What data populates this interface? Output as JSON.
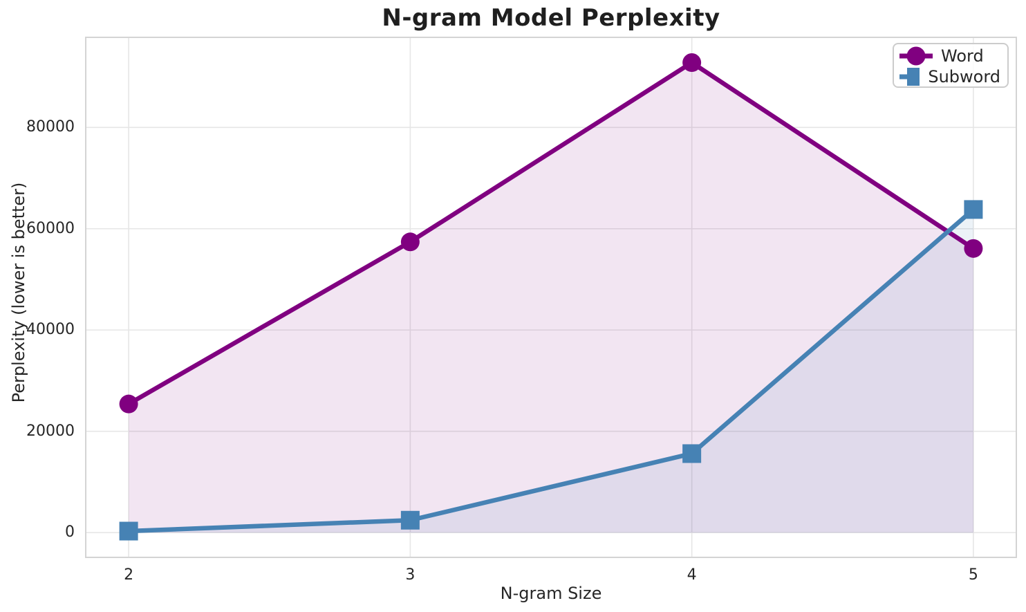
{
  "title": "N-gram Model Perplexity",
  "chart_data": {
    "type": "line",
    "title": "N-gram Model Perplexity",
    "xlabel": "N-gram Size",
    "ylabel": "Perplexity (lower is better)",
    "x": [
      2,
      3,
      4,
      5
    ],
    "series": [
      {
        "name": "Word",
        "values": [
          25400,
          57400,
          92800,
          56100
        ],
        "color": "#800080",
        "marker": "circle"
      },
      {
        "name": "Subword",
        "values": [
          300,
          2450,
          15600,
          63800
        ],
        "color": "#4682B4",
        "marker": "square"
      }
    ],
    "fill_under_lines": true,
    "fill_baseline": 0,
    "fill_opacity": 0.1,
    "xlim": [
      1.85,
      5.15
    ],
    "ylim": [
      -4750,
      97650
    ],
    "xticks": [
      2,
      3,
      4,
      5
    ],
    "xtick_labels": [
      "2",
      "3",
      "4",
      "5"
    ],
    "yticks": [
      0,
      20000,
      40000,
      60000,
      80000
    ],
    "ytick_labels": [
      "0",
      "20000",
      "40000",
      "60000",
      "80000"
    ],
    "grid": true,
    "legend_position": "upper right",
    "legend_entries": [
      "Word",
      "Subword"
    ]
  },
  "style": {
    "grid_color": "#e6e6e6",
    "spine_color": "#d4d4d4",
    "text_color": "#262626",
    "background": "#ffffff",
    "line_width": 6.5,
    "marker_size": 27
  }
}
